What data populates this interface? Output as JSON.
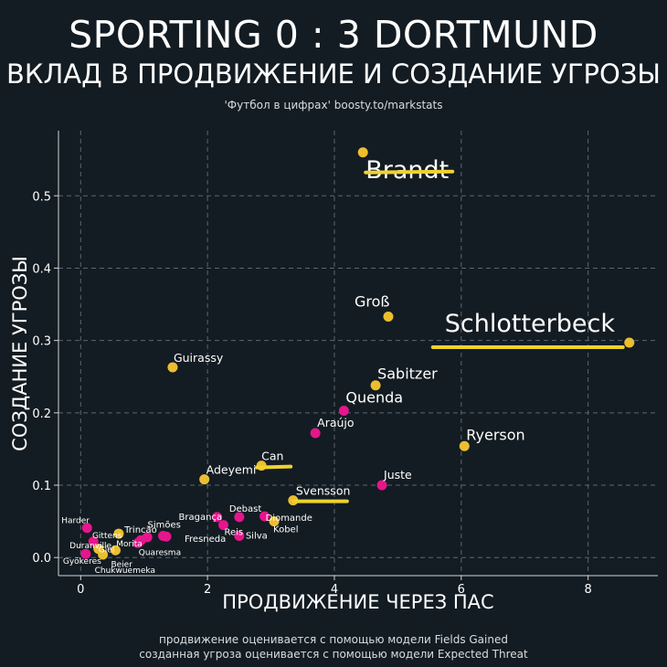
{
  "title": "SPORTING 0 : 3 DORTMUND",
  "subtitle": "ВКЛАД В ПРОДВИЖЕНИЕ И СОЗДАНИЕ УГРОЗЫ",
  "credit": "'Футбол в цифрах' boosty.to/markstats",
  "footer": [
    "продвижение оценивается с помощью модели Fields Gained",
    "созданная угроза оценивается с помощью модели Expected Threat"
  ],
  "colors": {
    "background": "#131c22",
    "dortmund": "#ecbe2f",
    "sporting": "#e4168c",
    "highlight": "#f0d22e",
    "grid": "#5a6670"
  },
  "chart_data": {
    "type": "scatter",
    "xlabel": "ПРОДВИЖЕНИЕ ЧЕРЕЗ ПАС",
    "ylabel": "СОЗДАНИЕ УГРОЗЫ",
    "xlim": [
      -0.35,
      9.1
    ],
    "ylim": [
      -0.025,
      0.59
    ],
    "xticks": [
      0,
      2,
      4,
      6,
      8
    ],
    "yticks": [
      0.0,
      0.1,
      0.2,
      0.3,
      0.4,
      0.5
    ],
    "grid": true,
    "series": [
      {
        "color": "#ecbe2f",
        "points": [
          {
            "label": "Brandt",
            "x": 4.45,
            "y": 0.56,
            "size": "xl",
            "underline": true
          },
          {
            "label": "Schlotterbeck",
            "x": 8.65,
            "y": 0.297,
            "size": "xl",
            "underline": true
          },
          {
            "label": "Groß",
            "x": 4.85,
            "y": 0.333,
            "size": "lg"
          },
          {
            "label": "Sabitzer",
            "x": 4.65,
            "y": 0.238,
            "size": "lg"
          },
          {
            "label": "Ryerson",
            "x": 6.05,
            "y": 0.154,
            "size": "lg"
          },
          {
            "label": "Guirassy",
            "x": 1.45,
            "y": 0.263,
            "size": "md"
          },
          {
            "label": "Can",
            "x": 2.85,
            "y": 0.127,
            "size": "md",
            "underline": true
          },
          {
            "label": "Adeyemi",
            "x": 1.95,
            "y": 0.108,
            "size": "md"
          },
          {
            "label": "Svensson",
            "x": 3.35,
            "y": 0.079,
            "size": "md",
            "underline": true
          },
          {
            "label": "Kobel",
            "x": 3.05,
            "y": 0.05,
            "size": "sm"
          },
          {
            "label": "Gittens",
            "x": 0.6,
            "y": 0.033,
            "size": "xs"
          },
          {
            "label": "Beier",
            "x": 0.55,
            "y": 0.01,
            "size": "xs"
          },
          {
            "label": "Giel",
            "x": 0.28,
            "y": 0.012,
            "size": "xs"
          },
          {
            "label": "Chukwuemeka",
            "x": 0.35,
            "y": 0.004,
            "size": "xs"
          }
        ]
      },
      {
        "color": "#e4168c",
        "points": [
          {
            "label": "Quenda",
            "x": 4.15,
            "y": 0.203,
            "size": "lg"
          },
          {
            "label": "Araújo",
            "x": 3.7,
            "y": 0.172,
            "size": "md"
          },
          {
            "label": "Juste",
            "x": 4.75,
            "y": 0.1,
            "size": "md"
          },
          {
            "label": "Diomande",
            "x": 2.9,
            "y": 0.057,
            "size": "sm"
          },
          {
            "label": "Debast",
            "x": 2.5,
            "y": 0.056,
            "size": "sm"
          },
          {
            "label": "Bragança",
            "x": 2.15,
            "y": 0.056,
            "size": "sm"
          },
          {
            "label": "Reis",
            "x": 2.25,
            "y": 0.045,
            "size": "sm"
          },
          {
            "label": "Silva",
            "x": 2.5,
            "y": 0.03,
            "size": "sm"
          },
          {
            "label": "Fresneda",
            "x": 1.35,
            "y": 0.029,
            "size": "sm"
          },
          {
            "label": "Simões",
            "x": 1.3,
            "y": 0.03,
            "size": "sm"
          },
          {
            "label": "Trincão",
            "x": 1.05,
            "y": 0.028,
            "size": "sm"
          },
          {
            "label": "Morita",
            "x": 0.95,
            "y": 0.024,
            "size": "xs"
          },
          {
            "label": "Quaresma",
            "x": 0.9,
            "y": 0.02,
            "size": "xs"
          },
          {
            "label": "Harder",
            "x": 0.1,
            "y": 0.041,
            "size": "xs"
          },
          {
            "label": "Duranville",
            "x": 0.2,
            "y": 0.022,
            "size": "xs"
          },
          {
            "label": "Gyökeres",
            "x": 0.08,
            "y": 0.005,
            "size": "xs"
          }
        ]
      }
    ]
  }
}
